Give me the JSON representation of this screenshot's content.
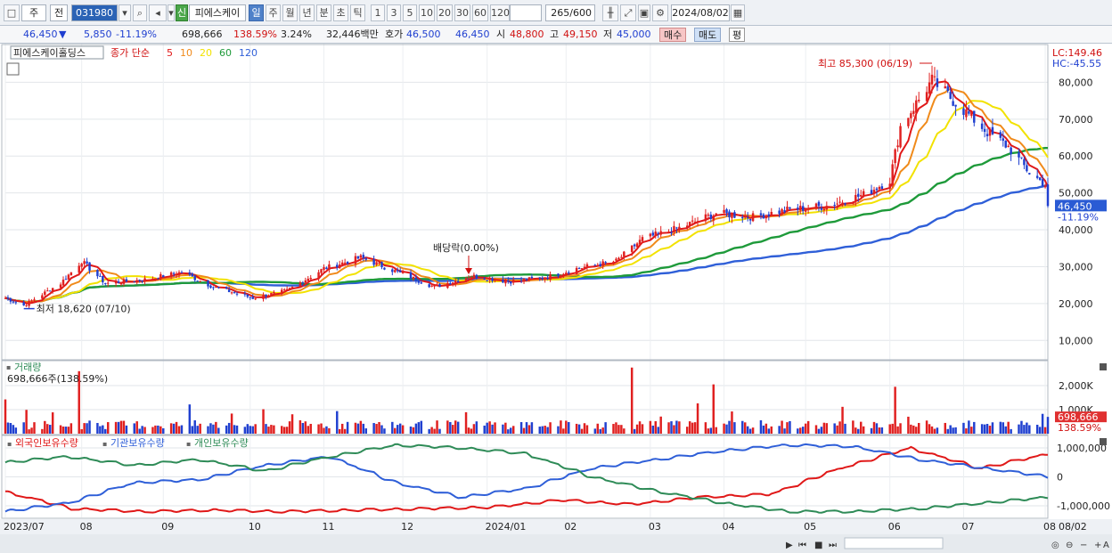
{
  "toolbar": {
    "market": "주",
    "prev": "전",
    "code": "031980",
    "new_badge": "신",
    "name": "피에스케이",
    "periods": [
      "일",
      "주",
      "월",
      "년",
      "분",
      "초",
      "틱"
    ],
    "active_period": "일",
    "multipliers": [
      "1",
      "3",
      "5",
      "10",
      "20",
      "30",
      "60",
      "120"
    ],
    "count": "265",
    "count_total": "/600",
    "date": "2024/08/02"
  },
  "quote": {
    "price": "46,450",
    "arrow": "▼",
    "change": "5,850",
    "change_pct": "-11.19%",
    "volume": "698,666",
    "volume_ratio": "138.59%",
    "turnover": "3.24%",
    "amount": "32,446백만",
    "ask_label": "호가",
    "ask": "46,500",
    "bid": "46,450",
    "open_label": "시",
    "open": "48,800",
    "high_label": "고",
    "high": "49,150",
    "low_label": "저",
    "low": "45,000",
    "buy_button": "매수",
    "sell_button": "매도",
    "extra_button": "평"
  },
  "price_panel": {
    "stock_name": "피에스케이홀딩스",
    "ma_label": "종가 단순",
    "ma_periods": [
      "5",
      "10",
      "20",
      "60",
      "120"
    ],
    "lc": "LC:149.46",
    "hc": "HC:-45.55",
    "high_annotation": "최고 85,300 (06/19)",
    "low_annotation": "최저 18,620 (07/10)",
    "dividend_annotation": "배당락(0.00%)",
    "current_price_tag": "46,450",
    "current_pct_tag": "-11.19%",
    "y_ticks": [
      "80,000",
      "70,000",
      "60,000",
      "50,000",
      "40,000",
      "30,000",
      "20,000",
      "10,000"
    ]
  },
  "volume_panel": {
    "title": "거래량",
    "value_text": "698,666주(138.59%)",
    "y_ticks": [
      "2,000K",
      "1,000K"
    ],
    "current_tag": "698,666",
    "current_pct": "138.59%"
  },
  "holdings_panel": {
    "series_labels": [
      "외국인보유수량",
      "기관보유수량",
      "개인보유수량"
    ],
    "y_ticks": [
      "1,000,000",
      "0",
      "-1,000,000"
    ]
  },
  "x_axis": {
    "labels": [
      "2023/07",
      "08",
      "09",
      "10",
      "11",
      "12",
      "2024/01",
      "02",
      "03",
      "04",
      "05",
      "06",
      "07",
      "08"
    ],
    "corner": "08/02"
  },
  "colors": {
    "ma5": "#e01818",
    "ma10": "#f08a1a",
    "ma20": "#f2e200",
    "ma60": "#1e9a3a",
    "ma120": "#2f5fd8",
    "up": "#e02020",
    "down": "#2040d0",
    "foreign": "#e01818",
    "institution": "#2f5fd8",
    "individual": "#2e8b57"
  },
  "chart_data": {
    "type": "candlestick",
    "x_start": "2023-07-03",
    "x_end": "2024-08-02",
    "price_ylim": [
      5000,
      90000
    ],
    "close_keypoints": [
      [
        "2023-07-03",
        21500
      ],
      [
        "2023-07-10",
        19500
      ],
      [
        "2023-07-24",
        25500
      ],
      [
        "2023-08-01",
        31500
      ],
      [
        "2023-08-10",
        25500
      ],
      [
        "2023-08-25",
        26500
      ],
      [
        "2023-09-08",
        28500
      ],
      [
        "2023-09-20",
        24500
      ],
      [
        "2023-10-05",
        21500
      ],
      [
        "2023-10-18",
        23500
      ],
      [
        "2023-11-01",
        29500
      ],
      [
        "2023-11-15",
        32500
      ],
      [
        "2023-11-29",
        28500
      ],
      [
        "2023-12-13",
        24500
      ],
      [
        "2023-12-27",
        27500
      ],
      [
        "2024-01-10",
        26000
      ],
      [
        "2024-01-24",
        27000
      ],
      [
        "2024-02-05",
        29500
      ],
      [
        "2024-02-20",
        31500
      ],
      [
        "2024-03-01",
        37500
      ],
      [
        "2024-03-15",
        40500
      ],
      [
        "2024-03-29",
        44500
      ],
      [
        "2024-04-12",
        43500
      ],
      [
        "2024-04-26",
        45500
      ],
      [
        "2024-05-10",
        46500
      ],
      [
        "2024-05-24",
        49500
      ],
      [
        "2024-06-03",
        53500
      ],
      [
        "2024-06-07",
        68000
      ],
      [
        "2024-06-19",
        80500
      ],
      [
        "2024-06-28",
        74500
      ],
      [
        "2024-07-10",
        66500
      ],
      [
        "2024-07-18",
        62500
      ],
      [
        "2024-07-26",
        55500
      ],
      [
        "2024-08-01",
        52300
      ],
      [
        "2024-08-02",
        46450
      ]
    ],
    "volume_ylim": [
      0,
      3000000
    ],
    "holdings_ylim": [
      -1400000,
      1400000
    ]
  }
}
